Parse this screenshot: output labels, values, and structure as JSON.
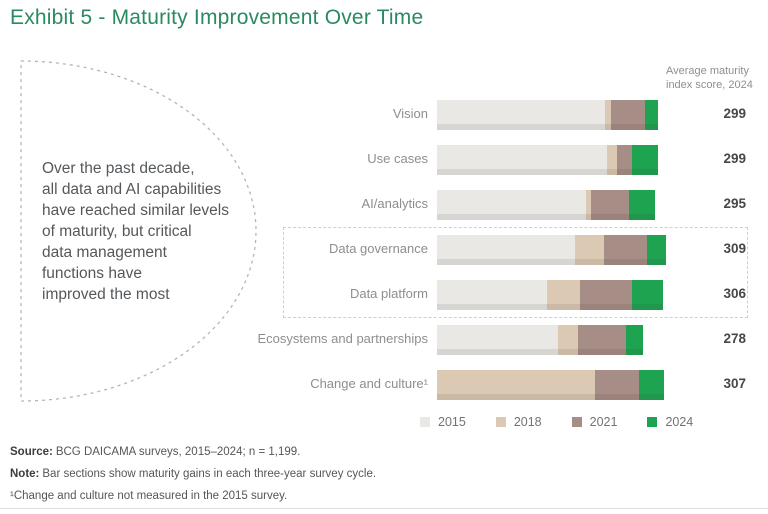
{
  "title": "Exhibit 5 - Maturity Improvement Over Time",
  "callout": {
    "text": "Over the past decade,\nall data and AI capabilities\nhave reached similar levels\nof maturity, but critical\ndata management\nfunctions have\nimproved the most"
  },
  "chart_data": {
    "type": "bar",
    "orientation": "horizontal",
    "stacked": true,
    "unit": "maturity index points",
    "score_header": "Average maturity\nindex score, 2024",
    "categories": [
      "Vision",
      "Use cases",
      "AI/analytics",
      "Data governance",
      "Data platform",
      "Ecosystems and partnerships",
      "Change and culture¹"
    ],
    "series": [
      {
        "name": "2015",
        "values": [
          227,
          230,
          201,
          187,
          148,
          163,
          0
        ]
      },
      {
        "name": "2018",
        "values": [
          8,
          13,
          7,
          39,
          45,
          28,
          214
        ]
      },
      {
        "name": "2021",
        "values": [
          46,
          21,
          52,
          58,
          71,
          65,
          59
        ]
      },
      {
        "name": "2024",
        "values": [
          18,
          35,
          35,
          25,
          42,
          22,
          34
        ]
      }
    ],
    "totals": [
      299,
      299,
      295,
      309,
      306,
      278,
      307
    ],
    "legend": [
      "2015",
      "2018",
      "2021",
      "2024"
    ],
    "colors": {
      "2015": "#e9e8e5",
      "2018": "#dbc9b3",
      "2021": "#a68d86",
      "2024": "#1ea351"
    },
    "highlighted_categories": [
      "Data governance",
      "Data platform"
    ],
    "legend_position": "bottom"
  },
  "footer": {
    "source_label": "Source:",
    "source_text": "BCG DAICAMA surveys, 2015–2024; n = 1,199.",
    "note_label": "Note:",
    "note_text": "Bar sections show maturity gains in each three-year survey cycle.",
    "footnote": "¹Change and culture not measured in the 2015 survey."
  }
}
